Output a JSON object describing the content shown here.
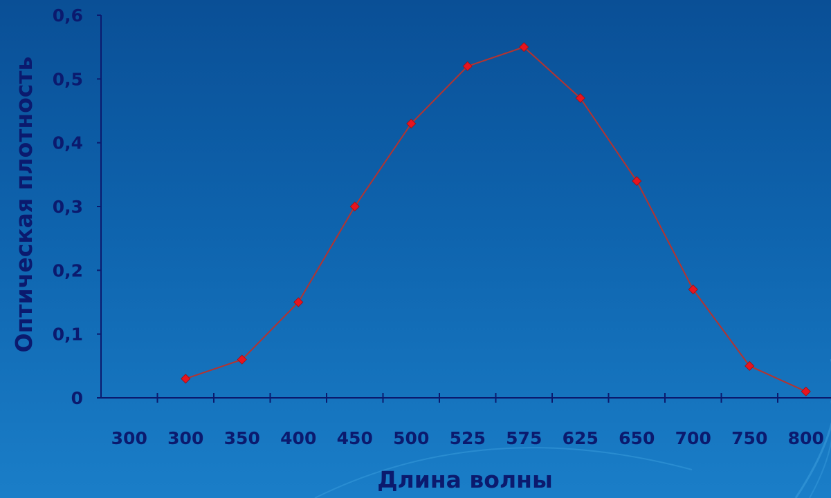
{
  "chart_data": {
    "type": "line",
    "title": "",
    "xlabel": "Длина волны",
    "ylabel": "Оптическая плотность",
    "categories": [
      "300",
      "300",
      "350",
      "400",
      "450",
      "500",
      "525",
      "575",
      "625",
      "650",
      "700",
      "750",
      "800"
    ],
    "series": [
      {
        "values": [
          null,
          0.03,
          0.06,
          0.15,
          0.3,
          0.43,
          0.52,
          0.55,
          0.47,
          0.34,
          0.17,
          0.05,
          0.01
        ]
      }
    ],
    "y_ticks": [
      "0",
      "0,1",
      "0,2",
      "0,3",
      "0,4",
      "0,5",
      "0,6"
    ],
    "ylim": [
      0,
      0.6
    ],
    "grid": false,
    "legend": "none"
  },
  "colors": {
    "line": "#b5332f",
    "marker": "#e8141e",
    "axis": "#0b1a6e",
    "text": "#0b1a6e",
    "decor": "#3fa2e0"
  }
}
